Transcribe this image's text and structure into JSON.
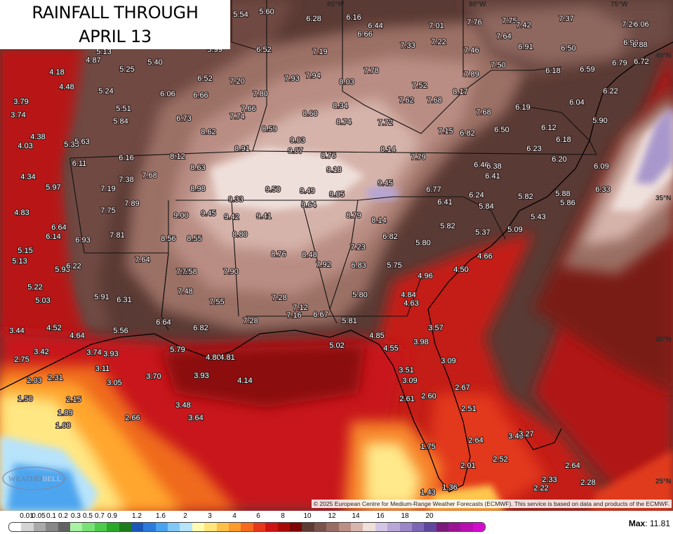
{
  "title": {
    "line1": "RAINFALL THROUGH",
    "line2": "APRIL 13"
  },
  "copyright": "© 2025 European Centre for Medium-Range Weather Forecasts (ECMWF). This service is based on data and products of the ECMWF.",
  "logo": {
    "text_main": "WEATHER",
    "text_accent": "BELL"
  },
  "max": {
    "label": "Max",
    "value": "11.81"
  },
  "scale": {
    "labels": [
      "0.01",
      "0.05",
      "0.1",
      "0.2",
      "0.3",
      "0.5",
      "0.7",
      "0.9",
      "1.2",
      "1.6",
      "2",
      "3",
      "4",
      "6",
      "8",
      "10",
      "12",
      "14",
      "16",
      "18",
      "20"
    ],
    "colors": [
      "#ffffff",
      "#d4d4d4",
      "#aaaaaa",
      "#878787",
      "#626262",
      "#a9f2a3",
      "#79e276",
      "#4dcc4c",
      "#2aa928",
      "#1d7c1b",
      "#1a56b8",
      "#2c7bdc",
      "#4aa3ef",
      "#82c8f7",
      "#b6e4fb",
      "#fffcb0",
      "#ffe57a",
      "#ffc04a",
      "#ff9a2c",
      "#f56a1d",
      "#e8381b",
      "#cf1212",
      "#a80a0a",
      "#7d0606",
      "#5e3b35",
      "#7b534a",
      "#9a6e64",
      "#bb8f85",
      "#d8b6ad",
      "#efe0dc",
      "#d3c5e4",
      "#b8a7d7",
      "#9b87c7",
      "#7d66b4",
      "#5f479f",
      "#7a1a7a",
      "#9a1593",
      "#b80fb0",
      "#d40ccd"
    ]
  },
  "coords": {
    "lon1": "85°W",
    "lon2": "80°W",
    "lon3": "75°W",
    "lat1": "40°N",
    "lat2": "35°N",
    "lat3": "30°N",
    "lat4": "25°N"
  },
  "points": [
    {
      "v": "5.54"
    },
    {
      "v": "5.60"
    },
    {
      "v": "6.28"
    },
    {
      "v": "6.16"
    },
    {
      "v": "6.44"
    },
    {
      "v": "6.66"
    },
    {
      "v": "7.01"
    },
    {
      "v": "7.76"
    },
    {
      "v": "7.75"
    },
    {
      "v": "7.42"
    },
    {
      "v": "7.37"
    },
    {
      "v": "7.26"
    },
    {
      "v": "6.06"
    },
    {
      "v": "5.13"
    },
    {
      "v": "4.87"
    },
    {
      "v": "5.99"
    },
    {
      "v": "6.52"
    },
    {
      "v": "7.19"
    },
    {
      "v": "7.33"
    },
    {
      "v": "7.22"
    },
    {
      "v": "7.64"
    },
    {
      "v": "6.91"
    },
    {
      "v": "6.50"
    },
    {
      "v": "6.96"
    },
    {
      "v": "6.88"
    },
    {
      "v": "4.18"
    },
    {
      "v": "4.48"
    },
    {
      "v": "5.40"
    },
    {
      "v": "5.25"
    },
    {
      "v": "7.46"
    },
    {
      "v": "6.79"
    },
    {
      "v": "6.72"
    },
    {
      "v": "5.24"
    },
    {
      "v": "6.06"
    },
    {
      "v": "6.52"
    },
    {
      "v": "6.66"
    },
    {
      "v": "7.20"
    },
    {
      "v": "7.93"
    },
    {
      "v": "7.94"
    },
    {
      "v": "7.78"
    },
    {
      "v": "8.03"
    },
    {
      "v": "7.52"
    },
    {
      "v": "7.89"
    },
    {
      "v": "7.50"
    },
    {
      "v": "6.18"
    },
    {
      "v": "6.59"
    },
    {
      "v": "3.79"
    },
    {
      "v": "3.74"
    },
    {
      "v": "5.51"
    },
    {
      "v": "5.84"
    },
    {
      "v": "6.73"
    },
    {
      "v": "7.80"
    },
    {
      "v": "7.66"
    },
    {
      "v": "7.74"
    },
    {
      "v": "8.60"
    },
    {
      "v": "8.34"
    },
    {
      "v": "8.74"
    },
    {
      "v": "7.72"
    },
    {
      "v": "7.62"
    },
    {
      "v": "7.68"
    },
    {
      "v": "8.17"
    },
    {
      "v": "7.68"
    },
    {
      "v": "6.19"
    },
    {
      "v": "6.04"
    },
    {
      "v": "6.22"
    },
    {
      "v": "5.90"
    },
    {
      "v": "4.38"
    },
    {
      "v": "4.03"
    },
    {
      "v": "5.35"
    },
    {
      "v": "5.63"
    },
    {
      "v": "8.62"
    },
    {
      "v": "8.59"
    },
    {
      "v": "9.03"
    },
    {
      "v": "7.15"
    },
    {
      "v": "6.82"
    },
    {
      "v": "6.50"
    },
    {
      "v": "6.12"
    },
    {
      "v": "6.18"
    },
    {
      "v": "6.11"
    },
    {
      "v": "6.16"
    },
    {
      "v": "8.12"
    },
    {
      "v": "8.91"
    },
    {
      "v": "9.07"
    },
    {
      "v": "8.76"
    },
    {
      "v": "8.14"
    },
    {
      "v": "7.79"
    },
    {
      "v": "6.23"
    },
    {
      "v": "6.20"
    },
    {
      "v": "6.46"
    },
    {
      "v": "6.38"
    },
    {
      "v": "6.09"
    },
    {
      "v": "4.34"
    },
    {
      "v": "7.68"
    },
    {
      "v": "7.38"
    },
    {
      "v": "8.63"
    },
    {
      "v": "9.18"
    },
    {
      "v": "6.41"
    },
    {
      "v": "5.97"
    },
    {
      "v": "7.19"
    },
    {
      "v": "8.98"
    },
    {
      "v": "9.50"
    },
    {
      "v": "9.49"
    },
    {
      "v": "9.05"
    },
    {
      "v": "9.45"
    },
    {
      "v": "6.77"
    },
    {
      "v": "6.24"
    },
    {
      "v": "5.82"
    },
    {
      "v": "5.88"
    },
    {
      "v": "6.33"
    },
    {
      "v": "7.89"
    },
    {
      "v": "9.33"
    },
    {
      "v": "9.64"
    },
    {
      "v": "6.41"
    },
    {
      "v": "5.84"
    },
    {
      "v": "5.86"
    },
    {
      "v": "4.83"
    },
    {
      "v": "7.75"
    },
    {
      "v": "9.00"
    },
    {
      "v": "9.45"
    },
    {
      "v": "9.42"
    },
    {
      "v": "9.41"
    },
    {
      "v": "8.79"
    },
    {
      "v": "8.14"
    },
    {
      "v": "5.43"
    },
    {
      "v": "6.64"
    },
    {
      "v": "6.14"
    },
    {
      "v": "7.81"
    },
    {
      "v": "8.56"
    },
    {
      "v": "8.55"
    },
    {
      "v": "8.80"
    },
    {
      "v": "6.82"
    },
    {
      "v": "5.82"
    },
    {
      "v": "5.37"
    },
    {
      "v": "5.09"
    },
    {
      "v": "6.93"
    },
    {
      "v": "7.23"
    },
    {
      "v": "5.80"
    },
    {
      "v": "5.15"
    },
    {
      "v": "5.13"
    },
    {
      "v": "5.93"
    },
    {
      "v": "6.22"
    },
    {
      "v": "7.64"
    },
    {
      "v": "8.76"
    },
    {
      "v": "8.48"
    },
    {
      "v": "7.92"
    },
    {
      "v": "6.83"
    },
    {
      "v": "5.75"
    },
    {
      "v": "4.66"
    },
    {
      "v": "7.68"
    },
    {
      "v": "7.58"
    },
    {
      "v": "7.90"
    },
    {
      "v": "4.96"
    },
    {
      "v": "4.50"
    },
    {
      "v": "5.22"
    },
    {
      "v": "7.48"
    },
    {
      "v": "5.03"
    },
    {
      "v": "5.91"
    },
    {
      "v": "6.31"
    },
    {
      "v": "7.55"
    },
    {
      "v": "7.28"
    },
    {
      "v": "5.80"
    },
    {
      "v": "4.84"
    },
    {
      "v": "4.63"
    },
    {
      "v": "7.12"
    },
    {
      "v": "7.16"
    },
    {
      "v": "6.67"
    },
    {
      "v": "7.28"
    },
    {
      "v": "6.64"
    },
    {
      "v": "5.81"
    },
    {
      "v": "3.57"
    },
    {
      "v": "3.44"
    },
    {
      "v": "4.52"
    },
    {
      "v": "5.56"
    },
    {
      "v": "6.82"
    },
    {
      "v": "4.64"
    },
    {
      "v": "4.85"
    },
    {
      "v": "3.98"
    },
    {
      "v": "5.02"
    },
    {
      "v": "4.55"
    },
    {
      "v": "3.42"
    },
    {
      "v": "3.74"
    },
    {
      "v": "3.93"
    },
    {
      "v": "5.79"
    },
    {
      "v": "4.80"
    },
    {
      "v": "4.81"
    },
    {
      "v": "2.75"
    },
    {
      "v": "3.09"
    },
    {
      "v": "3.11"
    },
    {
      "v": "3.51"
    },
    {
      "v": "2.03"
    },
    {
      "v": "2.31"
    },
    {
      "v": "3.05"
    },
    {
      "v": "3.70"
    },
    {
      "v": "3.93"
    },
    {
      "v": "4.14"
    },
    {
      "v": "3.09"
    },
    {
      "v": "2.67"
    },
    {
      "v": "1.50"
    },
    {
      "v": "2.15"
    },
    {
      "v": "2.61"
    },
    {
      "v": "2.60"
    },
    {
      "v": "3.48"
    },
    {
      "v": "2.51"
    },
    {
      "v": "1.89"
    },
    {
      "v": "2.66"
    },
    {
      "v": "3.64"
    },
    {
      "v": "1.68"
    },
    {
      "v": "3.40"
    },
    {
      "v": "3.27"
    },
    {
      "v": "2.64"
    },
    {
      "v": "1.75"
    },
    {
      "v": "2.52"
    },
    {
      "v": "2.01"
    },
    {
      "v": "2.64"
    },
    {
      "v": "2.33"
    },
    {
      "v": "2.28"
    },
    {
      "v": "2.22"
    },
    {
      "v": "1.43"
    },
    {
      "v": "1.36"
    }
  ]
}
